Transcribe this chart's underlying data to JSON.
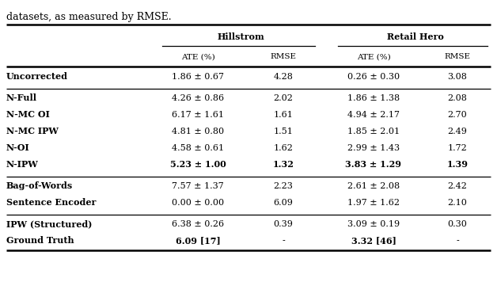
{
  "title_top": "datasets, as measured by RMSE.",
  "col_groups": [
    {
      "label": "Hillstrom",
      "cols": [
        "ATE (%)",
        "RMSE"
      ]
    },
    {
      "label": "Retail Hero",
      "cols": [
        "ATE (%)",
        "RMSE"
      ]
    }
  ],
  "rows": [
    {
      "section_break_before": false,
      "name": "Uncorrected",
      "bold_name": true,
      "hillstrom_ate": "1.86 ± 0.67",
      "hillstrom_rmse": "4.28",
      "retail_ate": "0.26 ± 0.30",
      "retail_rmse": "3.08",
      "bold_hillstrom_ate": false,
      "bold_hillstrom_rmse": false,
      "bold_retail_ate": false,
      "bold_retail_rmse": false
    },
    {
      "section_break_before": true,
      "name": "N-Full",
      "bold_name": true,
      "hillstrom_ate": "4.26 ± 0.86",
      "hillstrom_rmse": "2.02",
      "retail_ate": "1.86 ± 1.38",
      "retail_rmse": "2.08",
      "bold_hillstrom_ate": false,
      "bold_hillstrom_rmse": false,
      "bold_retail_ate": false,
      "bold_retail_rmse": false
    },
    {
      "section_break_before": false,
      "name": "N-MC OI",
      "bold_name": true,
      "hillstrom_ate": "6.17 ± 1.61",
      "hillstrom_rmse": "1.61",
      "retail_ate": "4.94 ± 2.17",
      "retail_rmse": "2.70",
      "bold_hillstrom_ate": false,
      "bold_hillstrom_rmse": false,
      "bold_retail_ate": false,
      "bold_retail_rmse": false
    },
    {
      "section_break_before": false,
      "name": "N-MC IPW",
      "bold_name": true,
      "hillstrom_ate": "4.81 ± 0.80",
      "hillstrom_rmse": "1.51",
      "retail_ate": "1.85 ± 2.01",
      "retail_rmse": "2.49",
      "bold_hillstrom_ate": false,
      "bold_hillstrom_rmse": false,
      "bold_retail_ate": false,
      "bold_retail_rmse": false
    },
    {
      "section_break_before": false,
      "name": "N-OI",
      "bold_name": true,
      "hillstrom_ate": "4.58 ± 0.61",
      "hillstrom_rmse": "1.62",
      "retail_ate": "2.99 ± 1.43",
      "retail_rmse": "1.72",
      "bold_hillstrom_ate": false,
      "bold_hillstrom_rmse": false,
      "bold_retail_ate": false,
      "bold_retail_rmse": false
    },
    {
      "section_break_before": false,
      "name": "N-IPW",
      "bold_name": true,
      "hillstrom_ate": "5.23 ± 1.00",
      "hillstrom_rmse": "1.32",
      "retail_ate": "3.83 ± 1.29",
      "retail_rmse": "1.39",
      "bold_hillstrom_ate": true,
      "bold_hillstrom_rmse": true,
      "bold_retail_ate": true,
      "bold_retail_rmse": true
    },
    {
      "section_break_before": true,
      "name": "Bag-of-Words",
      "bold_name": true,
      "hillstrom_ate": "7.57 ± 1.37",
      "hillstrom_rmse": "2.23",
      "retail_ate": "2.61 ± 2.08",
      "retail_rmse": "2.42",
      "bold_hillstrom_ate": false,
      "bold_hillstrom_rmse": false,
      "bold_retail_ate": false,
      "bold_retail_rmse": false
    },
    {
      "section_break_before": false,
      "name": "Sentence Encoder",
      "bold_name": true,
      "hillstrom_ate": "0.00 ± 0.00",
      "hillstrom_rmse": "6.09",
      "retail_ate": "1.97 ± 1.62",
      "retail_rmse": "2.10",
      "bold_hillstrom_ate": false,
      "bold_hillstrom_rmse": false,
      "bold_retail_ate": false,
      "bold_retail_rmse": false
    },
    {
      "section_break_before": true,
      "name": "IPW (Structured)",
      "bold_name": true,
      "hillstrom_ate": "6.38 ± 0.26",
      "hillstrom_rmse": "0.39",
      "retail_ate": "3.09 ± 0.19",
      "retail_rmse": "0.30",
      "bold_hillstrom_ate": false,
      "bold_hillstrom_rmse": false,
      "bold_retail_ate": false,
      "bold_retail_rmse": false
    },
    {
      "section_break_before": false,
      "name": "Ground Truth",
      "bold_name": true,
      "hillstrom_ate": "6.09 [17]",
      "hillstrom_rmse": "-",
      "retail_ate": "3.32 [46]",
      "retail_rmse": "-",
      "bold_hillstrom_ate": true,
      "bold_hillstrom_rmse": false,
      "bold_retail_ate": true,
      "bold_retail_rmse": false
    }
  ],
  "background_color": "#ffffff",
  "text_color": "#000000",
  "font_size": 8.0
}
